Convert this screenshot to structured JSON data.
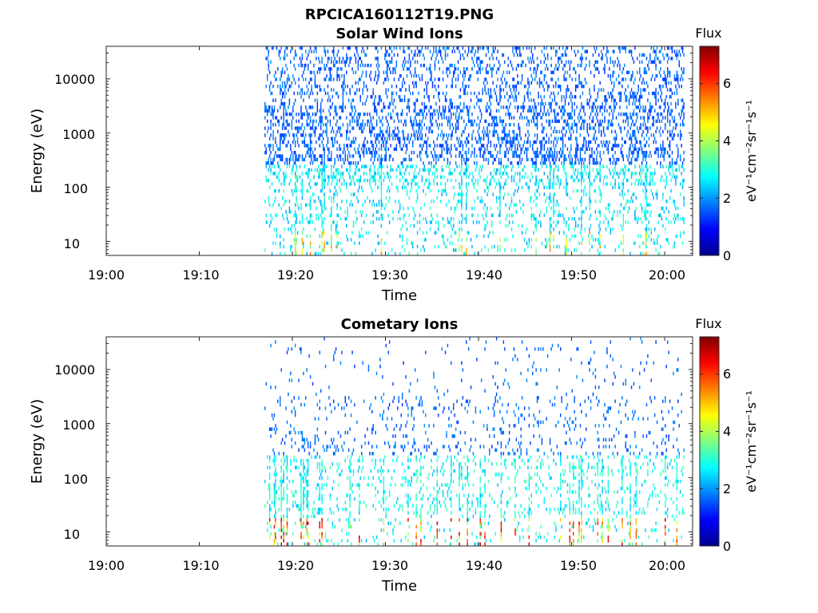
{
  "figure_title": "RPCICA160112T19.PNG",
  "chart_data": [
    {
      "type": "heatmap",
      "title": "Solar Wind Ions",
      "xlabel": "Time",
      "ylabel": "Energy (eV)",
      "x_range": [
        "19:00",
        "20:03"
      ],
      "y_range_eV": [
        5.5,
        40000
      ],
      "y_scale": "log",
      "x_ticks": [
        "19:00",
        "19:10",
        "19:20",
        "19:30",
        "19:40",
        "19:50",
        "20:00"
      ],
      "y_ticks": [
        "10",
        "100",
        "1000",
        "10000"
      ],
      "colorbar": {
        "title": "Flux",
        "label": "eV⁻¹cm⁻²sr⁻¹s⁻¹",
        "range": [
          0,
          7.3
        ],
        "ticks": [
          "0",
          "2",
          "4",
          "6"
        ],
        "colormap": "jet"
      },
      "data_start": "19:17",
      "data_end": "20:02",
      "grid": false
    },
    {
      "type": "heatmap",
      "title": "Cometary Ions",
      "xlabel": "Time",
      "ylabel": "Energy (eV)",
      "x_range": [
        "19:00",
        "20:03"
      ],
      "y_range_eV": [
        5.5,
        40000
      ],
      "y_scale": "log",
      "x_ticks": [
        "19:00",
        "19:10",
        "19:20",
        "19:30",
        "19:40",
        "19:50",
        "20:00"
      ],
      "y_ticks": [
        "10",
        "100",
        "1000",
        "10000"
      ],
      "colorbar": {
        "title": "Flux",
        "label": "eV⁻¹cm⁻²sr⁻¹s⁻¹",
        "range": [
          0,
          7.3
        ],
        "ticks": [
          "0",
          "2",
          "4",
          "6"
        ],
        "colormap": "jet"
      },
      "data_start": "19:17",
      "data_end": "20:02",
      "grid": false
    }
  ]
}
